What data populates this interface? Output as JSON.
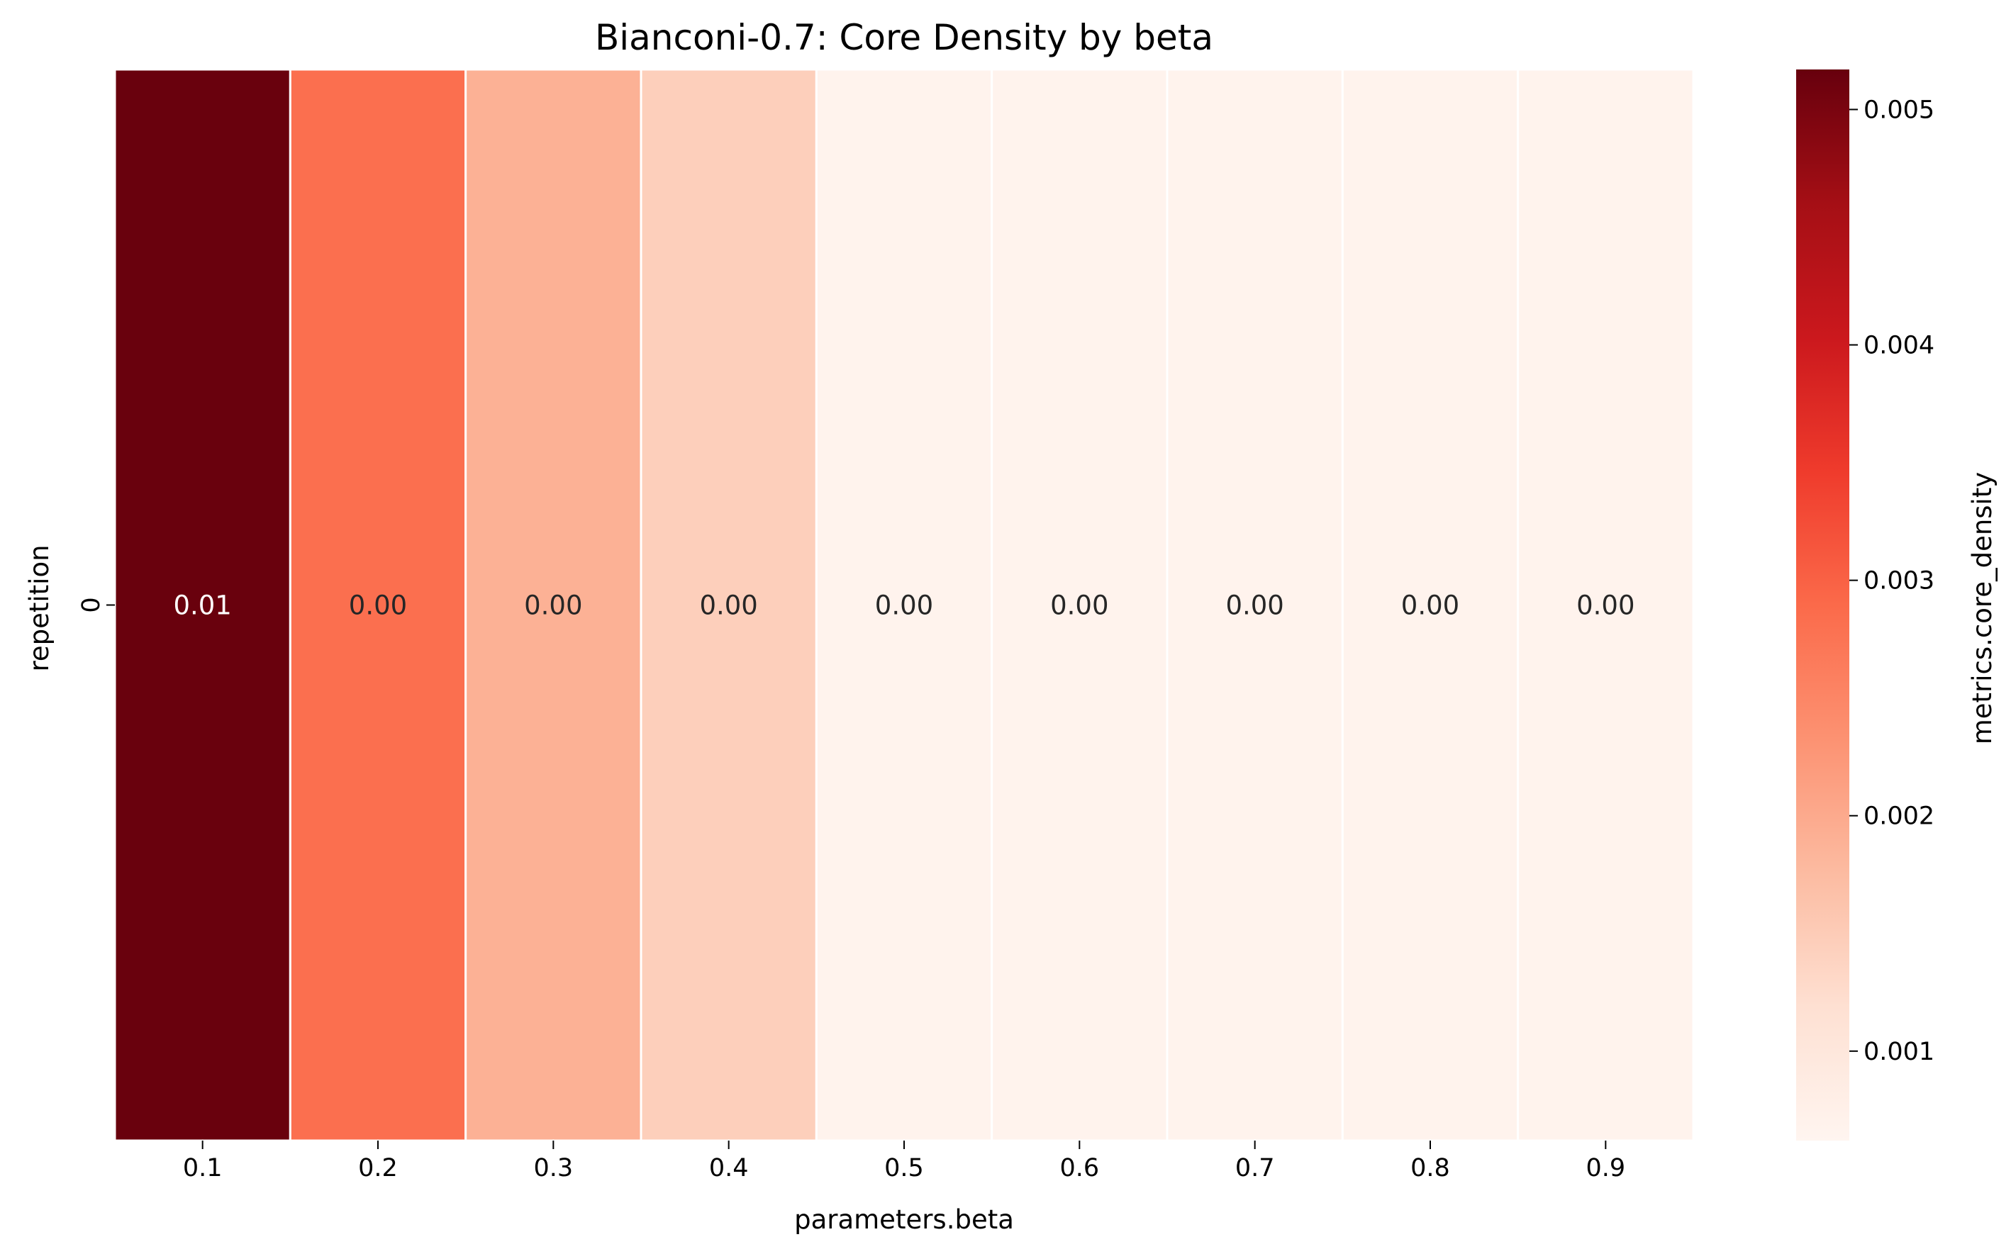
{
  "chart_data": {
    "type": "heatmap",
    "title": "Bianconi-0.7: Core Density by beta",
    "xlabel": "parameters.beta",
    "ylabel": "repetition",
    "x_categories": [
      "0.1",
      "0.2",
      "0.3",
      "0.4",
      "0.5",
      "0.6",
      "0.7",
      "0.8",
      "0.9"
    ],
    "y_categories": [
      "0"
    ],
    "values": [
      [
        0.00515,
        0.00282,
        0.0019,
        0.00145,
        0.00068,
        0.00068,
        0.00068,
        0.00068,
        0.00068
      ]
    ],
    "annotations": [
      [
        "0.01",
        "0.00",
        "0.00",
        "0.00",
        "0.00",
        "0.00",
        "0.00",
        "0.00",
        "0.00"
      ]
    ],
    "colormap": "Reds",
    "colorbar": {
      "label": "metrics.core_density",
      "vmin": 0.00062,
      "vmax": 0.00517,
      "ticks": [
        0.001,
        0.002,
        0.003,
        0.004,
        0.005
      ],
      "tick_labels": [
        "0.001",
        "0.002",
        "0.003",
        "0.004",
        "0.005"
      ]
    },
    "grid": false,
    "legend": "colorbar-right"
  }
}
